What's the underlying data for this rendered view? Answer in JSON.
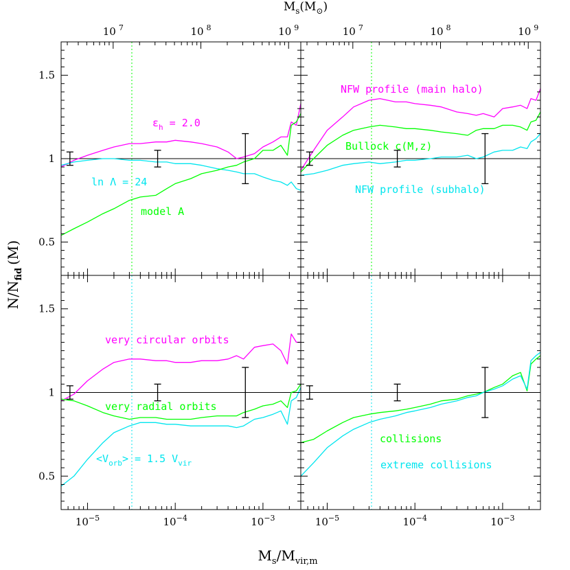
{
  "chart_data": {
    "type": "line",
    "x_axis": {
      "label_main": "M",
      "label_sub1": "s",
      "label_slash": "/M",
      "label_sub2": "vir,m",
      "scale": "log",
      "range": [
        5e-06,
        0.0027
      ],
      "tick_labels": [
        {
          "value": 1e-05,
          "base": "10",
          "exp": "−5"
        },
        {
          "value": 0.0001,
          "base": "10",
          "exp": "−4"
        },
        {
          "value": 0.001,
          "base": "10",
          "exp": "−3"
        }
      ]
    },
    "top_axis": {
      "label_main": "M",
      "label_sub": "s",
      "label_paren": "(M",
      "label_sun": "⊙",
      "label_close": ")",
      "tick_labels": [
        {
          "value": 1.96e-05,
          "base": "10",
          "exp": "7"
        },
        {
          "value": 0.000196,
          "base": "10",
          "exp": "8"
        },
        {
          "value": 0.00196,
          "base": "10",
          "exp": "9"
        }
      ]
    },
    "y_axis": {
      "label_main": "N/N",
      "label_sub": "fid",
      "label_paren": "(M)",
      "range_top": [
        0.3,
        1.7
      ],
      "range_bottom": [
        0.3,
        1.7
      ],
      "ticks": [
        0.5,
        1,
        1.5
      ],
      "tick_labels": [
        "0.5",
        "1",
        "1.5"
      ]
    },
    "vertical_markers": [
      {
        "panel": "top-left",
        "x": 3.2e-05,
        "color": "#00ff00"
      },
      {
        "panel": "top-right",
        "x": 3.2e-05,
        "color": "#00ff00"
      },
      {
        "panel": "bottom-left",
        "x": 3.2e-05,
        "color": "#00e5ee"
      },
      {
        "panel": "bottom-right",
        "x": 3.2e-05,
        "color": "#00e5ee"
      }
    ],
    "error_bars": [
      {
        "x": 6.3e-06,
        "y": 1.0,
        "lo": 0.96,
        "hi": 1.04
      },
      {
        "x": 6.3e-05,
        "y": 1.0,
        "lo": 0.95,
        "hi": 1.05
      },
      {
        "x": 0.00063,
        "y": 1.0,
        "lo": 0.85,
        "hi": 1.15
      }
    ],
    "panels": [
      {
        "id": "top-left",
        "series": [
          {
            "label_main": "ε",
            "label_sub": "h",
            "label_rest": " = 2.0",
            "color": "#ff00ff",
            "x": [
              5e-06,
              7e-06,
              1e-05,
              1.5e-05,
              2e-05,
              3e-05,
              4e-05,
              6e-05,
              8e-05,
              0.0001,
              0.00015,
              0.0002,
              0.0003,
              0.0004,
              0.0005,
              0.0006,
              0.0008,
              0.001,
              0.0013,
              0.0016,
              0.0019,
              0.0021,
              0.0024,
              0.0027
            ],
            "y": [
              0.95,
              0.99,
              1.02,
              1.05,
              1.07,
              1.09,
              1.09,
              1.1,
              1.1,
              1.11,
              1.1,
              1.09,
              1.07,
              1.04,
              1.0,
              1.01,
              1.03,
              1.07,
              1.1,
              1.13,
              1.13,
              1.22,
              1.2,
              1.33
            ]
          },
          {
            "label": "ln Λ = 24",
            "color": "#00e5ee",
            "x": [
              5e-06,
              7e-06,
              1e-05,
              1.5e-05,
              2e-05,
              3e-05,
              4e-05,
              6e-05,
              8e-05,
              0.0001,
              0.00015,
              0.0002,
              0.0003,
              0.0004,
              0.0005,
              0.0006,
              0.0008,
              0.001,
              0.0013,
              0.0016,
              0.0019,
              0.0021,
              0.0024,
              0.0027
            ],
            "y": [
              0.96,
              0.98,
              0.99,
              1.0,
              1.0,
              0.99,
              0.99,
              0.98,
              0.98,
              0.97,
              0.97,
              0.96,
              0.94,
              0.93,
              0.92,
              0.91,
              0.91,
              0.89,
              0.87,
              0.86,
              0.84,
              0.86,
              0.82,
              0.81
            ]
          },
          {
            "label": "model A",
            "color": "#00ff00",
            "x": [
              5e-06,
              7e-06,
              1e-05,
              1.5e-05,
              2e-05,
              3e-05,
              4e-05,
              6e-05,
              8e-05,
              0.0001,
              0.00015,
              0.0002,
              0.0003,
              0.0004,
              0.0005,
              0.0006,
              0.0008,
              0.001,
              0.0013,
              0.0016,
              0.0019,
              0.0021,
              0.0024,
              0.0027
            ],
            "y": [
              0.54,
              0.58,
              0.62,
              0.67,
              0.7,
              0.75,
              0.77,
              0.78,
              0.82,
              0.85,
              0.88,
              0.91,
              0.93,
              0.95,
              0.96,
              0.98,
              1.0,
              1.05,
              1.05,
              1.08,
              1.02,
              1.2,
              1.22,
              1.27
            ]
          }
        ]
      },
      {
        "id": "top-right",
        "series": [
          {
            "label": "NFW profile (main halo)",
            "color": "#ff00ff",
            "x": [
              5e-06,
              7e-06,
              1e-05,
              1.5e-05,
              2e-05,
              3e-05,
              4e-05,
              6e-05,
              8e-05,
              0.0001,
              0.00015,
              0.0002,
              0.0003,
              0.0004,
              0.0005,
              0.0006,
              0.0008,
              0.001,
              0.0013,
              0.0016,
              0.0019,
              0.0021,
              0.0024,
              0.0027
            ],
            "y": [
              0.93,
              1.05,
              1.17,
              1.25,
              1.31,
              1.35,
              1.36,
              1.34,
              1.34,
              1.33,
              1.32,
              1.31,
              1.28,
              1.27,
              1.26,
              1.27,
              1.25,
              1.3,
              1.31,
              1.32,
              1.3,
              1.36,
              1.35,
              1.42
            ]
          },
          {
            "label": "Bullock c(M,z)",
            "color": "#00ff00",
            "x": [
              5e-06,
              7e-06,
              1e-05,
              1.5e-05,
              2e-05,
              3e-05,
              4e-05,
              6e-05,
              8e-05,
              0.0001,
              0.00015,
              0.0002,
              0.0003,
              0.0004,
              0.0005,
              0.0006,
              0.0008,
              0.001,
              0.0013,
              0.0016,
              0.0019,
              0.0021,
              0.0024,
              0.0027
            ],
            "y": [
              0.92,
              1.0,
              1.08,
              1.14,
              1.17,
              1.19,
              1.2,
              1.19,
              1.18,
              1.18,
              1.17,
              1.16,
              1.15,
              1.14,
              1.17,
              1.18,
              1.18,
              1.2,
              1.2,
              1.19,
              1.17,
              1.22,
              1.23,
              1.28
            ]
          },
          {
            "label": "NFW profile (subhalo)",
            "color": "#00e5ee",
            "x": [
              5e-06,
              7e-06,
              1e-05,
              1.5e-05,
              2e-05,
              3e-05,
              4e-05,
              6e-05,
              8e-05,
              0.0001,
              0.00015,
              0.0002,
              0.0003,
              0.0004,
              0.0005,
              0.0006,
              0.0008,
              0.001,
              0.0013,
              0.0016,
              0.0019,
              0.0021,
              0.0024,
              0.0027
            ],
            "y": [
              0.9,
              0.91,
              0.93,
              0.96,
              0.97,
              0.98,
              0.97,
              0.98,
              0.99,
              0.99,
              1.0,
              1.01,
              1.01,
              1.02,
              1.0,
              1.01,
              1.04,
              1.05,
              1.05,
              1.07,
              1.06,
              1.1,
              1.12,
              1.15
            ]
          }
        ]
      },
      {
        "id": "bottom-left",
        "series": [
          {
            "label": "very circular orbits",
            "color": "#ff00ff",
            "x": [
              5e-06,
              7e-06,
              1e-05,
              1.5e-05,
              2e-05,
              3e-05,
              4e-05,
              6e-05,
              8e-05,
              0.0001,
              0.00015,
              0.0002,
              0.0003,
              0.0004,
              0.0005,
              0.0006,
              0.0008,
              0.001,
              0.0013,
              0.0016,
              0.0019,
              0.0021,
              0.0024,
              0.0027
            ],
            "y": [
              0.95,
              0.99,
              1.07,
              1.14,
              1.18,
              1.2,
              1.2,
              1.19,
              1.19,
              1.18,
              1.18,
              1.19,
              1.19,
              1.2,
              1.22,
              1.2,
              1.27,
              1.28,
              1.29,
              1.25,
              1.17,
              1.35,
              1.3,
              1.3
            ]
          },
          {
            "label": "very radial orbits",
            "color": "#00ff00",
            "x": [
              5e-06,
              7e-06,
              1e-05,
              1.5e-05,
              2e-05,
              3e-05,
              4e-05,
              6e-05,
              8e-05,
              0.0001,
              0.00015,
              0.0002,
              0.0003,
              0.0004,
              0.0005,
              0.0006,
              0.0008,
              0.001,
              0.0013,
              0.0016,
              0.0019,
              0.0021,
              0.0024,
              0.0027
            ],
            "y": [
              0.96,
              0.95,
              0.92,
              0.88,
              0.86,
              0.84,
              0.85,
              0.85,
              0.84,
              0.84,
              0.84,
              0.85,
              0.86,
              0.86,
              0.86,
              0.88,
              0.9,
              0.92,
              0.93,
              0.95,
              0.91,
              1.0,
              1.01,
              1.05
            ]
          },
          {
            "label_main": "<V",
            "label_sub1": "orb",
            "label_mid": "> = 1.5 V",
            "label_sub2": "vir",
            "color": "#00e5ee",
            "x": [
              5e-06,
              7e-06,
              1e-05,
              1.5e-05,
              2e-05,
              3e-05,
              4e-05,
              6e-05,
              8e-05,
              0.0001,
              0.00015,
              0.0002,
              0.0003,
              0.0004,
              0.0005,
              0.0006,
              0.0008,
              0.001,
              0.0013,
              0.0016,
              0.0019,
              0.0021,
              0.0024,
              0.0027
            ],
            "y": [
              0.44,
              0.5,
              0.6,
              0.7,
              0.76,
              0.8,
              0.82,
              0.82,
              0.81,
              0.81,
              0.8,
              0.8,
              0.8,
              0.8,
              0.79,
              0.8,
              0.84,
              0.85,
              0.87,
              0.89,
              0.81,
              0.95,
              0.97,
              1.03
            ]
          }
        ]
      },
      {
        "id": "bottom-right",
        "series": [
          {
            "label": "collisions",
            "color": "#00ff00",
            "x": [
              5e-06,
              7e-06,
              1e-05,
              1.5e-05,
              2e-05,
              3e-05,
              4e-05,
              6e-05,
              8e-05,
              0.0001,
              0.00015,
              0.0002,
              0.0003,
              0.0004,
              0.0005,
              0.0006,
              0.0008,
              0.001,
              0.0013,
              0.0016,
              0.0019,
              0.0021,
              0.0024,
              0.0027
            ],
            "y": [
              0.7,
              0.72,
              0.77,
              0.82,
              0.85,
              0.87,
              0.88,
              0.89,
              0.9,
              0.91,
              0.93,
              0.95,
              0.96,
              0.98,
              0.99,
              1.0,
              1.03,
              1.05,
              1.1,
              1.12,
              1.01,
              1.17,
              1.2,
              1.22
            ]
          },
          {
            "label": "extreme collisions",
            "color": "#00e5ee",
            "x": [
              5e-06,
              7e-06,
              1e-05,
              1.5e-05,
              2e-05,
              3e-05,
              4e-05,
              6e-05,
              8e-05,
              0.0001,
              0.00015,
              0.0002,
              0.0003,
              0.0004,
              0.0005,
              0.0006,
              0.0008,
              0.001,
              0.0013,
              0.0016,
              0.0019,
              0.0021,
              0.0024,
              0.0027
            ],
            "y": [
              0.5,
              0.58,
              0.67,
              0.74,
              0.78,
              0.82,
              0.84,
              0.86,
              0.88,
              0.89,
              0.91,
              0.93,
              0.95,
              0.97,
              0.98,
              1.0,
              1.02,
              1.04,
              1.08,
              1.1,
              1.02,
              1.19,
              1.22,
              1.24
            ]
          }
        ]
      }
    ]
  }
}
